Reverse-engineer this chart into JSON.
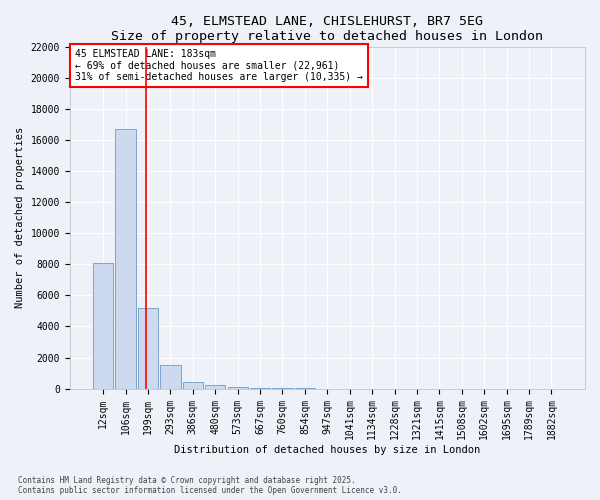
{
  "title1": "45, ELMSTEAD LANE, CHISLEHURST, BR7 5EG",
  "title2": "Size of property relative to detached houses in London",
  "xlabel": "Distribution of detached houses by size in London",
  "ylabel": "Number of detached properties",
  "categories": [
    "12sqm",
    "106sqm",
    "199sqm",
    "293sqm",
    "386sqm",
    "480sqm",
    "573sqm",
    "667sqm",
    "760sqm",
    "854sqm",
    "947sqm",
    "1041sqm",
    "1134sqm",
    "1228sqm",
    "1321sqm",
    "1415sqm",
    "1508sqm",
    "1602sqm",
    "1695sqm",
    "1789sqm",
    "1882sqm"
  ],
  "values": [
    8100,
    16700,
    5200,
    1550,
    420,
    210,
    120,
    50,
    20,
    8,
    4,
    2,
    1,
    1,
    0,
    0,
    0,
    0,
    0,
    0,
    0
  ],
  "bar_color": "#ccd9ee",
  "bar_edge_color": "#7aa6cc",
  "vline_x": 1.92,
  "vline_color": "red",
  "annotation_text": "45 ELMSTEAD LANE: 183sqm\n← 69% of detached houses are smaller (22,961)\n31% of semi-detached houses are larger (10,335) →",
  "annotation_box_color": "white",
  "annotation_box_edge": "red",
  "ylim": [
    0,
    22000
  ],
  "yticks": [
    0,
    2000,
    4000,
    6000,
    8000,
    10000,
    12000,
    14000,
    16000,
    18000,
    20000,
    22000
  ],
  "background_color": "#eef2f8",
  "grid_color": "white",
  "footer": "Contains HM Land Registry data © Crown copyright and database right 2025.\nContains public sector information licensed under the Open Government Licence v3.0.",
  "title1_fontsize": 9.5,
  "title2_fontsize": 8.5,
  "xlabel_fontsize": 7.5,
  "ylabel_fontsize": 7.5,
  "tick_fontsize": 7,
  "annot_fontsize": 7,
  "footer_fontsize": 5.5
}
